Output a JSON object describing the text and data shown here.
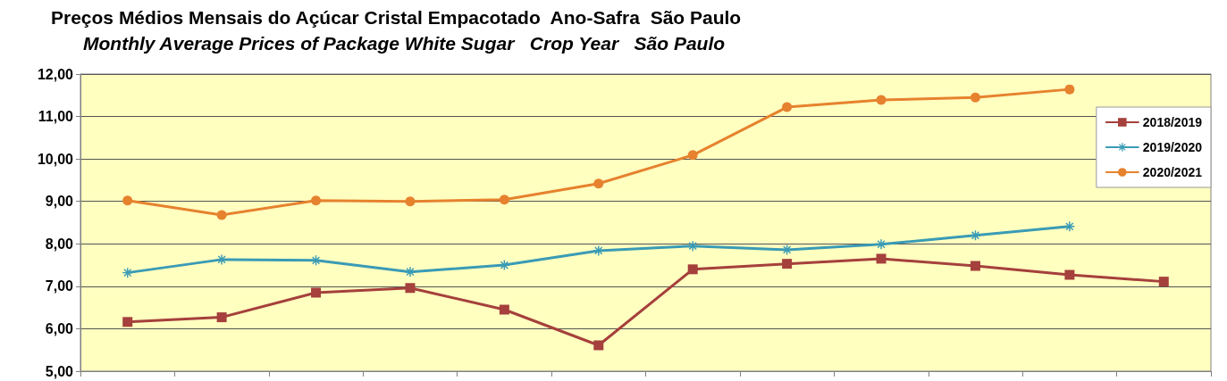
{
  "chart_data": {
    "type": "line",
    "title": "Preços Médios Mensais do Açúcar Cristal Empacotado  Ano-Safra  São Paulo",
    "subtitle": "Monthly Average Prices of Package White Sugar   Crop Year   São Paulo",
    "categories": [
      null,
      null,
      null,
      null,
      null,
      null,
      null,
      null,
      null,
      null,
      null,
      null
    ],
    "series": [
      {
        "name": "2018/2019",
        "color": "#a5403c",
        "marker": "square",
        "values": [
          6.16,
          6.27,
          6.85,
          6.96,
          6.45,
          5.61,
          7.4,
          7.53,
          7.65,
          7.48,
          7.27,
          7.11
        ]
      },
      {
        "name": "2019/2020",
        "color": "#3a9bb5",
        "marker": "cross",
        "values": [
          7.32,
          7.63,
          7.61,
          7.34,
          7.5,
          7.84,
          7.95,
          7.86,
          7.99,
          8.2,
          8.41,
          null
        ]
      },
      {
        "name": "2020/2021",
        "color": "#e6822e",
        "marker": "circle",
        "values": [
          9.02,
          8.68,
          9.02,
          9.0,
          9.04,
          9.42,
          10.09,
          11.22,
          11.39,
          11.45,
          11.64,
          null
        ]
      }
    ],
    "ylim": [
      5,
      12
    ],
    "yticks": [
      {
        "value": 5,
        "label": "5,00"
      },
      {
        "value": 6,
        "label": "6,00"
      },
      {
        "value": 7,
        "label": "7,00"
      },
      {
        "value": 8,
        "label": "8,00"
      },
      {
        "value": 9,
        "label": "9,00"
      },
      {
        "value": 10,
        "label": "10,00"
      },
      {
        "value": 11,
        "label": "11,00"
      },
      {
        "value": 12,
        "label": "12,00"
      }
    ],
    "grid": "y",
    "legend": "right",
    "tick_labels": "y",
    "line_style": "solid"
  }
}
